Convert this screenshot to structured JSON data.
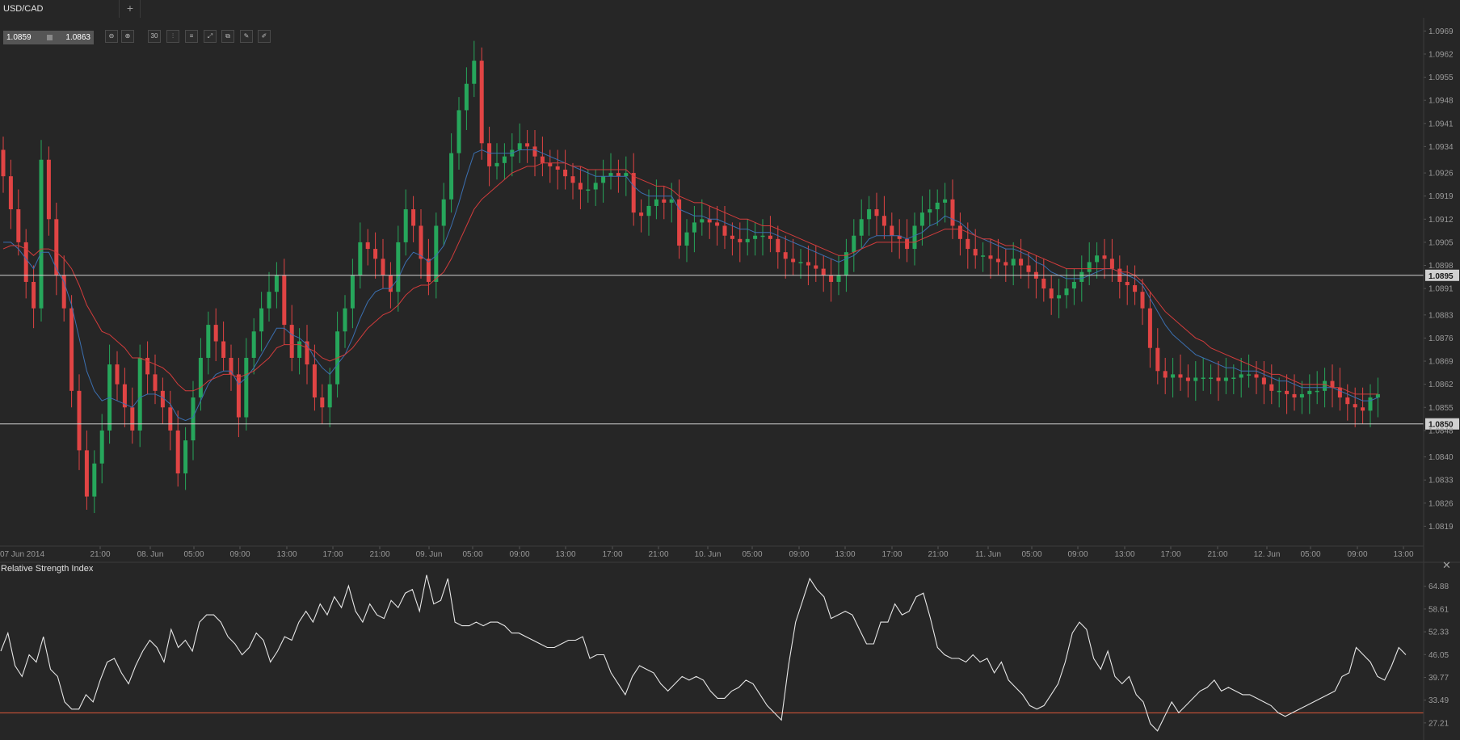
{
  "tabs": [
    {
      "label": "USD/CAD"
    }
  ],
  "add_tab_label": "+",
  "quote": {
    "bid": "1.0859",
    "ask": "1.0863"
  },
  "toolbar": {
    "buttons": [
      {
        "icon": "zoom-out-icon",
        "glyph": "⊖"
      },
      {
        "icon": "zoom-in-icon",
        "glyph": "⊕"
      },
      {
        "icon": "timeframe-icon",
        "glyph": "30"
      },
      {
        "icon": "chart-type-icon",
        "glyph": "⫶"
      },
      {
        "icon": "indicators-icon",
        "glyph": "≡"
      },
      {
        "icon": "expand-icon",
        "glyph": "⤢"
      },
      {
        "icon": "copy-icon",
        "glyph": "⧉"
      },
      {
        "icon": "edit-icon",
        "glyph": "✎"
      },
      {
        "icon": "draw-icon",
        "glyph": "✐"
      }
    ]
  },
  "colors": {
    "background": "#262626",
    "up_candle": "#26a65b",
    "down_candle": "#e04444",
    "ma_fast": "#3b6fb0",
    "ma_slow": "#d23c3c",
    "rsi_line": "#e6e6e6",
    "rsi_level": "#e05a3a",
    "hline": "#cfcfcf",
    "axis_text": "#9a9a9a"
  },
  "rsi_label": "Relative Strength Index",
  "close_glyph": "✕",
  "chart_data": [
    {
      "type": "candlestick",
      "symbol": "USD/CAD",
      "timeframe_minutes": 30,
      "ylim": [
        1.0812,
        1.0973
      ],
      "y_ticks": [
        "1.0969",
        "1.0962",
        "1.0955",
        "1.0948",
        "1.0941",
        "1.0934",
        "1.0926",
        "1.0919",
        "1.0912",
        "1.0905",
        "1.0898",
        "1.0891",
        "1.0883",
        "1.0876",
        "1.0869",
        "1.0862",
        "1.0855",
        "1.0848",
        "1.0840",
        "1.0833",
        "1.0826",
        "1.0819"
      ],
      "x_labels": [
        "07 Jun 2014",
        "21:00",
        "08. Jun",
        "05:00",
        "09:00",
        "13:00",
        "17:00",
        "21:00",
        "09. Jun",
        "05:00",
        "09:00",
        "13:00",
        "17:00",
        "21:00",
        "10. Jun",
        "05:00",
        "09:00",
        "13:00",
        "17:00",
        "21:00",
        "11. Jun",
        "05:00",
        "09:00",
        "13:00",
        "17:00",
        "21:00",
        "12. Jun",
        "05:00",
        "09:00",
        "13:00"
      ],
      "horizontal_lines": [
        {
          "value": 1.0895,
          "label": "1.0895"
        },
        {
          "value": 1.085,
          "label": "1.0850"
        }
      ],
      "close": [
        1.0925,
        1.0915,
        1.0905,
        1.0893,
        1.0885,
        1.093,
        1.0912,
        1.0895,
        1.0885,
        1.086,
        1.0842,
        1.0828,
        1.0838,
        1.0848,
        1.0868,
        1.0862,
        1.0855,
        1.0848,
        1.087,
        1.0865,
        1.086,
        1.0855,
        1.0848,
        1.0835,
        1.0845,
        1.0858,
        1.087,
        1.088,
        1.0875,
        1.087,
        1.0865,
        1.0852,
        1.087,
        1.0878,
        1.0885,
        1.089,
        1.0895,
        1.088,
        1.087,
        1.0875,
        1.0868,
        1.0858,
        1.0855,
        1.0862,
        1.0878,
        1.0885,
        1.0895,
        1.0905,
        1.0903,
        1.09,
        1.0895,
        1.089,
        1.0905,
        1.0915,
        1.091,
        1.09,
        1.0893,
        1.091,
        1.0918,
        1.0932,
        1.0945,
        1.0953,
        1.096,
        1.0935,
        1.0928,
        1.0929,
        1.0931,
        1.0933,
        1.0935,
        1.0934,
        1.0931,
        1.0929,
        1.0928,
        1.0927,
        1.0925,
        1.0923,
        1.0921,
        1.0921,
        1.0923,
        1.0925,
        1.0926,
        1.0925,
        1.0926,
        1.0914,
        1.0913,
        1.0916,
        1.0918,
        1.0917,
        1.0918,
        1.0904,
        1.0908,
        1.0911,
        1.0912,
        1.0911,
        1.091,
        1.0907,
        1.0906,
        1.0905,
        1.0906,
        1.0907,
        1.0907,
        1.0906,
        1.0902,
        1.09,
        1.0899,
        1.0899,
        1.0898,
        1.0897,
        1.0895,
        1.0893,
        1.0895,
        1.0902,
        1.0907,
        1.0912,
        1.0915,
        1.0913,
        1.091,
        1.0907,
        1.0906,
        1.0903,
        1.091,
        1.0914,
        1.0915,
        1.0917,
        1.0918,
        1.091,
        1.0906,
        1.0903,
        1.0901,
        1.0901,
        1.09,
        1.0899,
        1.0898,
        1.09,
        1.0898,
        1.0896,
        1.0894,
        1.0891,
        1.0888,
        1.0889,
        1.0891,
        1.0893,
        1.0896,
        1.0899,
        1.0901,
        1.09,
        1.0897,
        1.0893,
        1.0892,
        1.089,
        1.0885,
        1.0873,
        1.0866,
        1.0864,
        1.0865,
        1.0864,
        1.0863,
        1.0864,
        1.0864,
        1.0864,
        1.0863,
        1.0864,
        1.0864,
        1.0865,
        1.0865,
        1.0864,
        1.0862,
        1.086,
        1.086,
        1.0859,
        1.0858,
        1.0859,
        1.086,
        1.086,
        1.0863,
        1.0861,
        1.0858,
        1.0856,
        1.0855,
        1.0854,
        1.0858,
        1.0859
      ],
      "series": [
        {
          "name": "MA fast",
          "values": [
            1.0905,
            1.0905,
            1.0903,
            1.09,
            1.0897,
            1.0902,
            1.0902,
            1.0897,
            1.0893,
            1.0886,
            1.0876,
            1.0866,
            1.086,
            1.0857,
            1.0858,
            1.0857,
            1.0856,
            1.0855,
            1.0858,
            1.0859,
            1.0859,
            1.0858,
            1.0856,
            1.0852,
            1.0851,
            1.0852,
            1.0857,
            1.0862,
            1.0865,
            1.0866,
            1.0866,
            1.0862,
            1.0864,
            1.0867,
            1.0871,
            1.0875,
            1.0879,
            1.0879,
            1.0877,
            1.0876,
            1.0874,
            1.087,
            1.0867,
            1.0865,
            1.0868,
            1.0871,
            1.0876,
            1.0882,
            1.0887,
            1.089,
            1.0891,
            1.0891,
            1.0894,
            1.0899,
            1.0902,
            1.0901,
            1.0899,
            1.0901,
            1.0904,
            1.091,
            1.0917,
            1.0925,
            1.0932,
            1.0933,
            1.0932,
            1.0932,
            1.0932,
            1.0932,
            1.0933,
            1.0933,
            1.0933,
            1.0932,
            1.0931,
            1.093,
            1.0929,
            1.0928,
            1.0927,
            1.0926,
            1.0925,
            1.0925,
            1.0925,
            1.0925,
            1.0925,
            1.0922,
            1.092,
            1.0919,
            1.0919,
            1.0919,
            1.0919,
            1.0915,
            1.0914,
            1.0913,
            1.0913,
            1.0912,
            1.0912,
            1.0911,
            1.091,
            1.0909,
            1.0909,
            1.0908,
            1.0908,
            1.0908,
            1.0907,
            1.0906,
            1.0905,
            1.0904,
            1.0903,
            1.0902,
            1.0901,
            1.09,
            1.0899,
            1.09,
            1.0901,
            1.0903,
            1.0906,
            1.0907,
            1.0907,
            1.0907,
            1.0907,
            1.0906,
            1.0907,
            1.0908,
            1.091,
            1.0911,
            1.0913,
            1.0912,
            1.0911,
            1.0909,
            1.0907,
            1.0906,
            1.0905,
            1.0904,
            1.0903,
            1.0903,
            1.0902,
            1.0901,
            1.0899,
            1.0898,
            1.0896,
            1.0895,
            1.0894,
            1.0894,
            1.0894,
            1.0895,
            1.0896,
            1.0897,
            1.0897,
            1.0896,
            1.0895,
            1.0894,
            1.0892,
            1.0888,
            1.0884,
            1.088,
            1.0877,
            1.0875,
            1.0873,
            1.0871,
            1.087,
            1.0869,
            1.0868,
            1.0867,
            1.0867,
            1.0866,
            1.0866,
            1.0866,
            1.0865,
            1.0864,
            1.0863,
            1.0863,
            1.0862,
            1.0861,
            1.0861,
            1.0861,
            1.0861,
            1.0861,
            1.086,
            1.0859,
            1.0858,
            1.0857,
            1.0857,
            1.0858
          ]
        },
        {
          "name": "MA slow",
          "values": [
            1.0903,
            1.0904,
            1.0904,
            1.0903,
            1.0901,
            1.0903,
            1.0903,
            1.0902,
            1.09,
            1.0897,
            1.0892,
            1.0886,
            1.0882,
            1.0878,
            1.0877,
            1.0875,
            1.0873,
            1.087,
            1.087,
            1.0869,
            1.0868,
            1.0867,
            1.0865,
            1.0862,
            1.086,
            1.086,
            1.0861,
            1.0863,
            1.0864,
            1.0865,
            1.0865,
            1.0864,
            1.0865,
            1.0866,
            1.0868,
            1.087,
            1.0873,
            1.0874,
            1.0874,
            1.0874,
            1.0873,
            1.0872,
            1.087,
            1.0869,
            1.087,
            1.0871,
            1.0873,
            1.0876,
            1.0879,
            1.0881,
            1.0883,
            1.0884,
            1.0886,
            1.0889,
            1.0891,
            1.0892,
            1.0892,
            1.0894,
            1.0896,
            1.09,
            1.0905,
            1.091,
            1.0915,
            1.0918,
            1.092,
            1.0922,
            1.0924,
            1.0926,
            1.0927,
            1.0928,
            1.0928,
            1.0929,
            1.0929,
            1.0929,
            1.0929,
            1.0928,
            1.0928,
            1.0927,
            1.0927,
            1.0927,
            1.0927,
            1.0927,
            1.0927,
            1.0925,
            1.0924,
            1.0923,
            1.0922,
            1.0922,
            1.0921,
            1.0919,
            1.0918,
            1.0917,
            1.0917,
            1.0916,
            1.0915,
            1.0914,
            1.0913,
            1.0912,
            1.0912,
            1.0911,
            1.091,
            1.091,
            1.0909,
            1.0908,
            1.0907,
            1.0906,
            1.0905,
            1.0904,
            1.0903,
            1.0902,
            1.0901,
            1.0901,
            1.0902,
            1.0903,
            1.0904,
            1.0905,
            1.0905,
            1.0905,
            1.0905,
            1.0905,
            1.0905,
            1.0906,
            1.0907,
            1.0908,
            1.0909,
            1.0909,
            1.0909,
            1.0908,
            1.0907,
            1.0906,
            1.0906,
            1.0905,
            1.0904,
            1.0904,
            1.0903,
            1.0902,
            1.0901,
            1.09,
            1.0899,
            1.0898,
            1.0897,
            1.0897,
            1.0897,
            1.0897,
            1.0897,
            1.0897,
            1.0897,
            1.0896,
            1.0896,
            1.0895,
            1.0893,
            1.089,
            1.0887,
            1.0884,
            1.0882,
            1.088,
            1.0878,
            1.0876,
            1.0875,
            1.0873,
            1.0872,
            1.0871,
            1.087,
            1.0869,
            1.0868,
            1.0867,
            1.0866,
            1.0865,
            1.0865,
            1.0864,
            1.0863,
            1.0862,
            1.0862,
            1.0862,
            1.0862,
            1.0861,
            1.0861,
            1.086,
            1.0859,
            1.0859,
            1.0859,
            1.0859
          ]
        }
      ]
    },
    {
      "type": "line",
      "title": "Relative Strength Index",
      "ylim": [
        22.5,
        69.5
      ],
      "y_ticks": [
        "64.88",
        "58.61",
        "52.33",
        "46.05",
        "39.77",
        "33.49",
        "27.21"
      ],
      "level": 30,
      "values": [
        47,
        52,
        43,
        40,
        46,
        44,
        51,
        42,
        40,
        33,
        31,
        31,
        35,
        33,
        39,
        44,
        45,
        41,
        38,
        43,
        47,
        50,
        48,
        44,
        53,
        48,
        50,
        47,
        55,
        57,
        57,
        55,
        51,
        49,
        46,
        48,
        52,
        50,
        44,
        47,
        51,
        50,
        55,
        58,
        55,
        60,
        57,
        62,
        59,
        65,
        58,
        55,
        60,
        57,
        56,
        61,
        59,
        63,
        64,
        58,
        68,
        60,
        61,
        67,
        55,
        54,
        54,
        55,
        54,
        55,
        55,
        54,
        52,
        52,
        51,
        50,
        49,
        48,
        48,
        49,
        50,
        50,
        51,
        45,
        46,
        46,
        41,
        38,
        35,
        40,
        43,
        42,
        41,
        38,
        36,
        38,
        40,
        39,
        40,
        39,
        36,
        34,
        34,
        36,
        37,
        39,
        38,
        35,
        32,
        30,
        28,
        43,
        55,
        61,
        67,
        64,
        62,
        56,
        57,
        58,
        57,
        53,
        49,
        49,
        55,
        55,
        60,
        57,
        58,
        62,
        63,
        56,
        48,
        46,
        45,
        45,
        44,
        46,
        44,
        45,
        41,
        44,
        39,
        37,
        35,
        32,
        31,
        32,
        35,
        38,
        44,
        52,
        55,
        53,
        45,
        42,
        47,
        40,
        38,
        40,
        35,
        33,
        27,
        25,
        29,
        33,
        30,
        32,
        34,
        36,
        37,
        39,
        36,
        37,
        36,
        35,
        35,
        34,
        33,
        32,
        30,
        29,
        30,
        31,
        32,
        33,
        34,
        35,
        36,
        40,
        41,
        48,
        46,
        44,
        40,
        39,
        43,
        48,
        46
      ]
    }
  ]
}
